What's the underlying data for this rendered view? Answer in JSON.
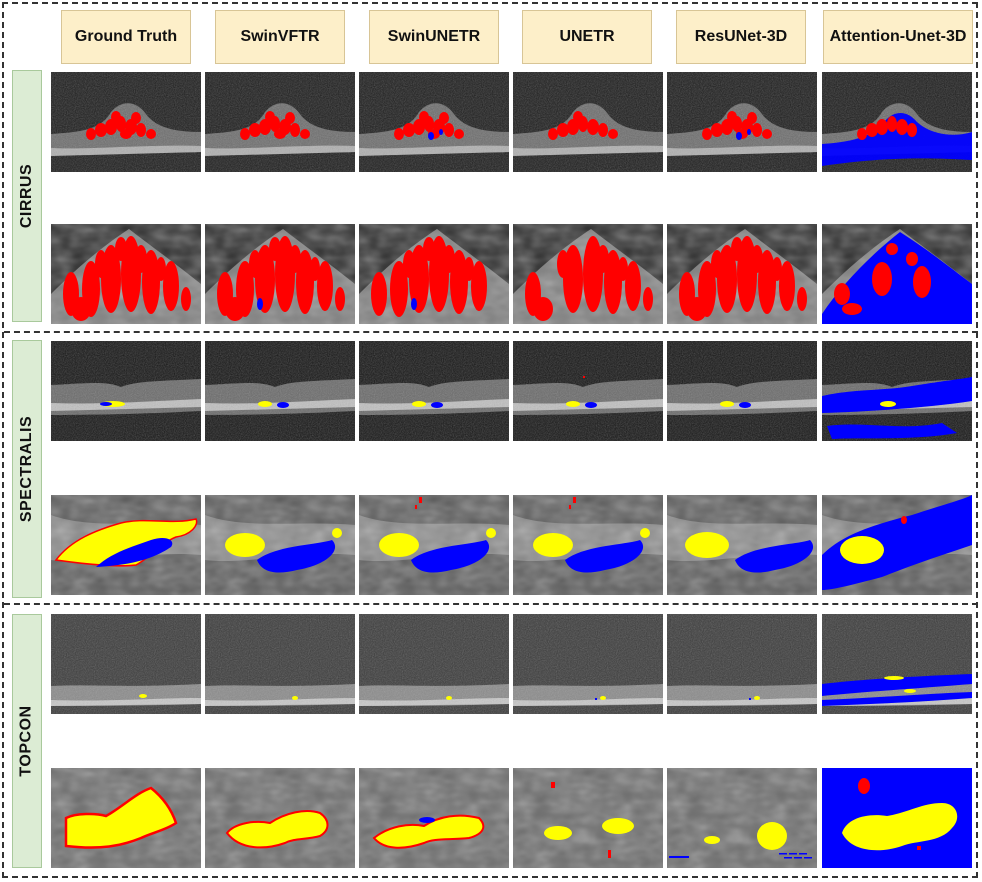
{
  "columns": [
    {
      "label": "Ground Truth"
    },
    {
      "label": "SwinVFTR"
    },
    {
      "label": "SwinUNETR"
    },
    {
      "label": "UNETR"
    },
    {
      "label": "ResUNet-3D"
    },
    {
      "label": "Attention-Unet-3D"
    }
  ],
  "rows": [
    {
      "label": "CIRRUS"
    },
    {
      "label": "SPECTRALIS"
    },
    {
      "label": "TOPCON"
    }
  ],
  "colors": {
    "fluid_red": "#ff0000",
    "fluid_yellow": "#ffff00",
    "fluid_blue": "#0000ff",
    "header_column_fill": "#fdefc9",
    "header_row_fill": "#dcecd4"
  }
}
